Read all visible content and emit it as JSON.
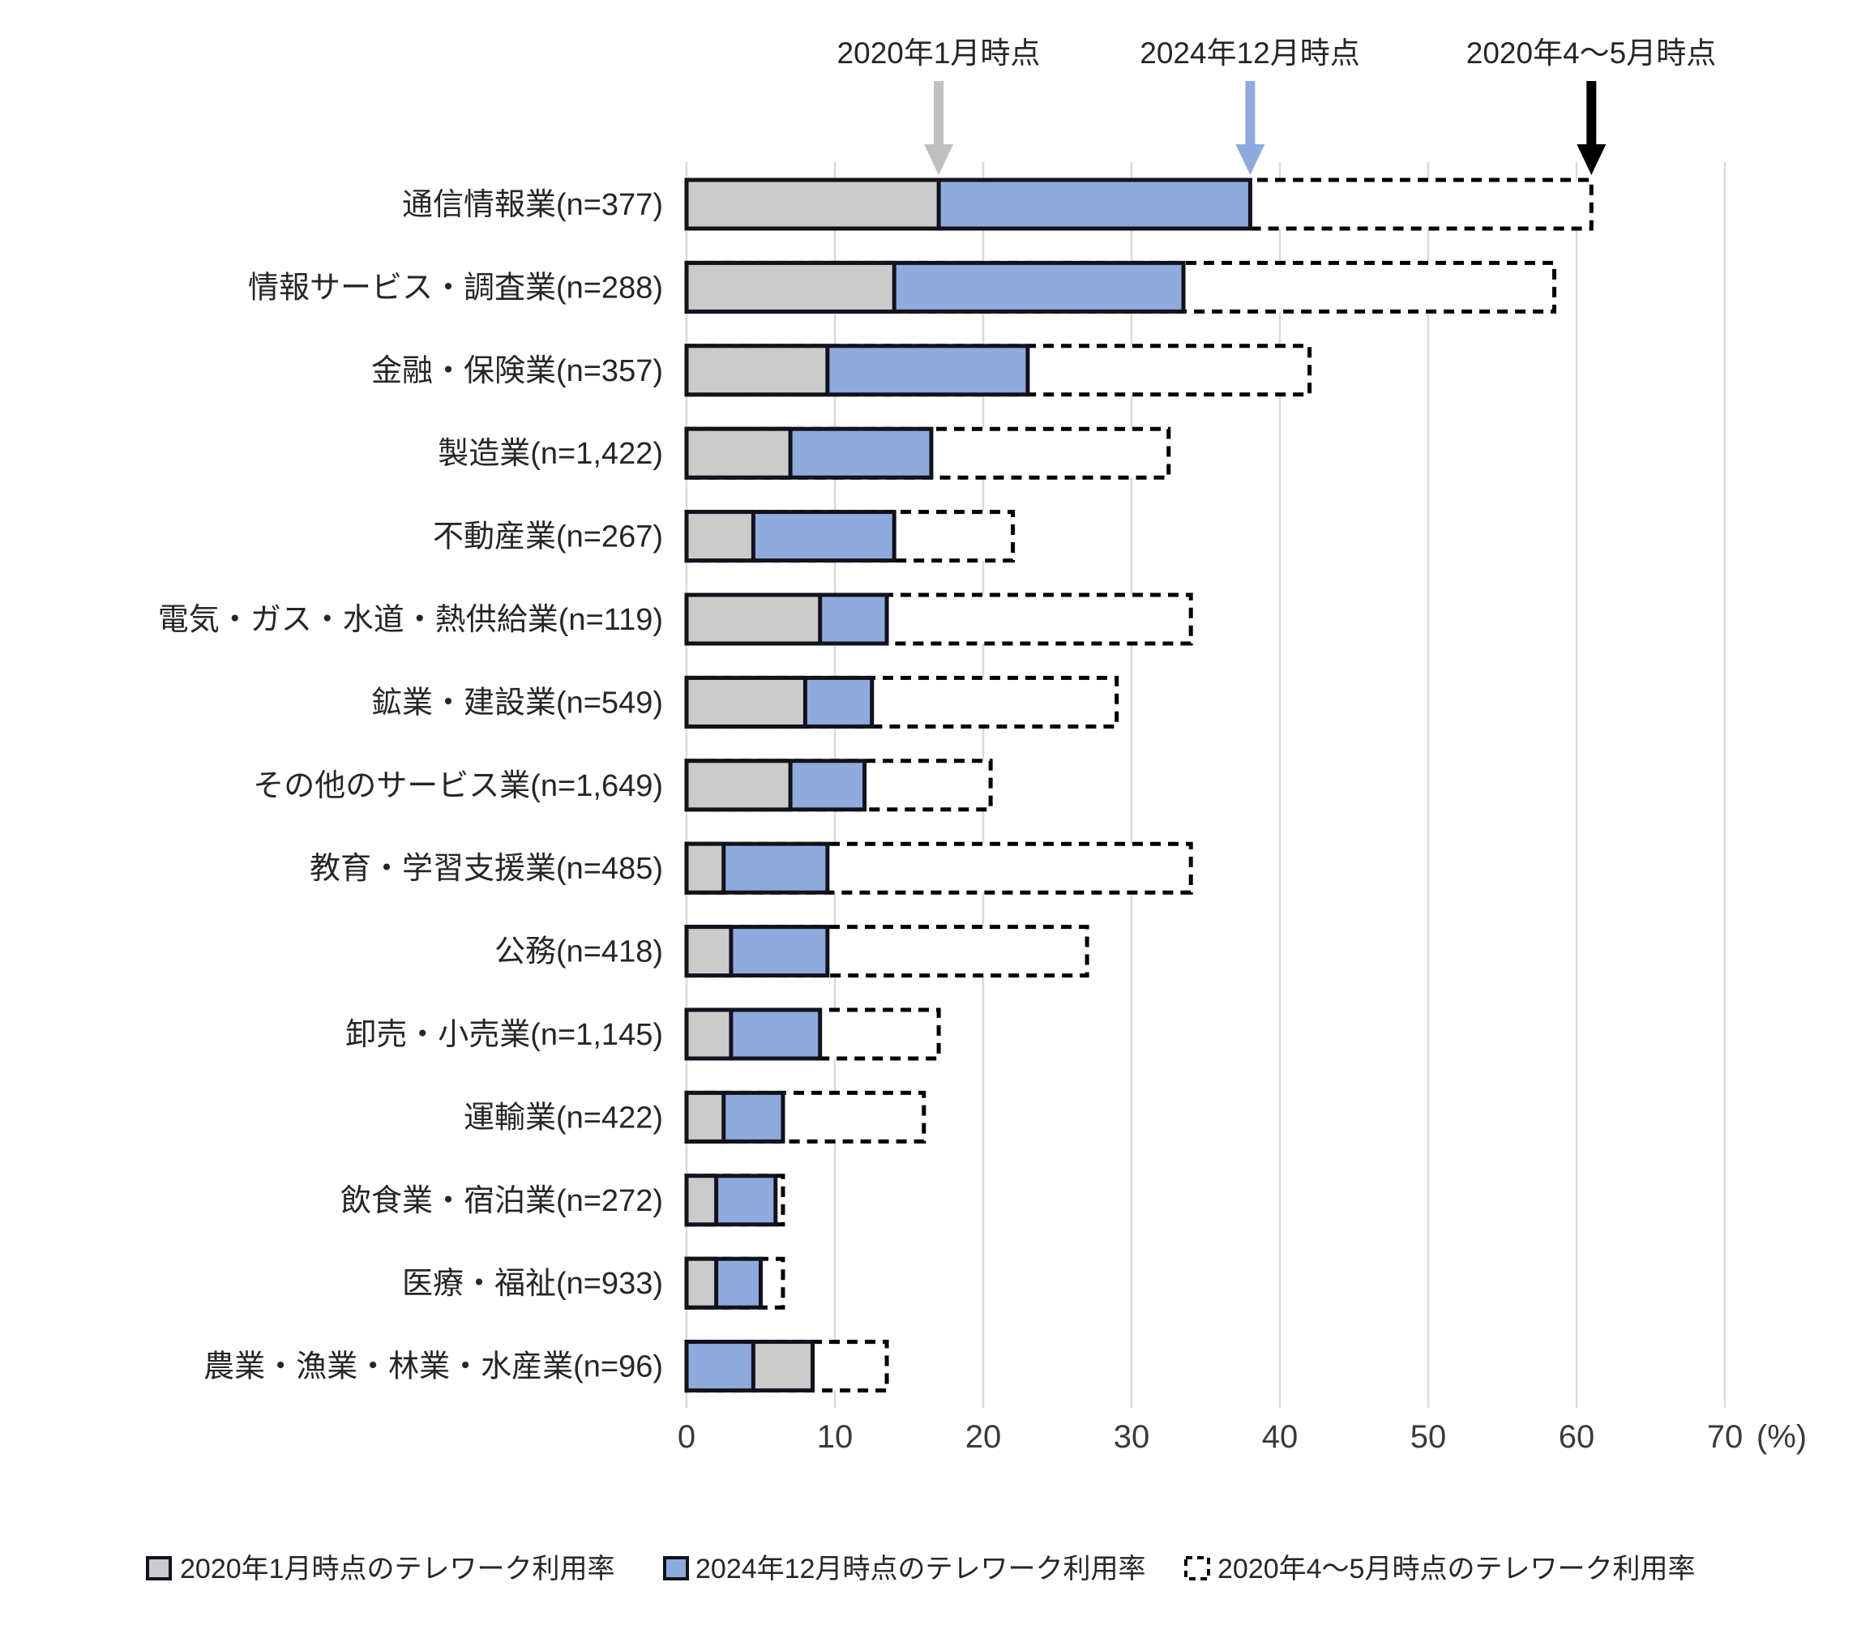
{
  "annotations": {
    "arrow_labels": [
      {
        "text": "2020年1月時点",
        "value": 17,
        "color": "#bfbfbf"
      },
      {
        "text": "2024年12月時点",
        "value": 38,
        "color": "#8faadc"
      },
      {
        "text": "2020年4～5月時点",
        "value": 61,
        "color": "#000000"
      }
    ]
  },
  "axis": {
    "ticks": [
      0,
      10,
      20,
      30,
      40,
      50,
      60,
      70
    ],
    "unit_label": "(%)"
  },
  "legend": [
    {
      "label": "2020年1月時点のテレワーク利用率",
      "swatch": "solid-gray"
    },
    {
      "label": "2024年12月時点のテレワーク利用率",
      "swatch": "solid-blue"
    },
    {
      "label": "2020年4～5月時点のテレワーク利用率",
      "swatch": "dashed"
    }
  ],
  "colors": {
    "gray_fill": "#cbcbcb",
    "blue_fill": "#8faadc",
    "bar_border": "#12121c",
    "dashed_border": "#000000",
    "gridline": "#d9d9d9",
    "text": "#262626"
  },
  "chart_data": {
    "type": "bar",
    "orientation": "horizontal",
    "title": "",
    "xlabel": "(%)",
    "ylabel": "",
    "xlim": [
      0,
      70
    ],
    "grid": true,
    "legend_position": "bottom",
    "categories": [
      "通信情報業(n=377)",
      "情報サービス・調査業(n=288)",
      "金融・保険業(n=357)",
      "製造業(n=1,422)",
      "不動産業(n=267)",
      "電気・ガス・水道・熱供給業(n=119)",
      "鉱業・建設業(n=549)",
      "その他のサービス業(n=1,649)",
      "教育・学習支援業(n=485)",
      "公務(n=418)",
      "卸売・小売業(n=1,145)",
      "運輸業(n=422)",
      "飲食業・宿泊業(n=272)",
      "医療・福祉(n=933)",
      "農業・漁業・林業・水産業(n=96)"
    ],
    "series": [
      {
        "name": "2020年1月時点のテレワーク利用率",
        "style": "solid",
        "color": "#cbcbcb",
        "values": [
          17,
          14,
          9.5,
          7,
          4.5,
          9,
          8,
          7,
          2.5,
          3,
          3,
          2.5,
          2,
          2,
          8.5
        ]
      },
      {
        "name": "2024年12月時点のテレワーク利用率",
        "style": "solid",
        "color": "#8faadc",
        "values": [
          38,
          33.5,
          23,
          16.5,
          14,
          13.5,
          12.5,
          12,
          9.5,
          9.5,
          9,
          6.5,
          6,
          5,
          4.5
        ]
      },
      {
        "name": "2020年4～5月時点のテレワーク利用率",
        "style": "dashed-outline",
        "color": "#ffffff",
        "values": [
          61,
          58.5,
          42,
          32.5,
          22,
          34,
          29,
          20.5,
          34,
          27,
          17,
          16,
          6.5,
          6.5,
          13.5
        ]
      }
    ]
  }
}
